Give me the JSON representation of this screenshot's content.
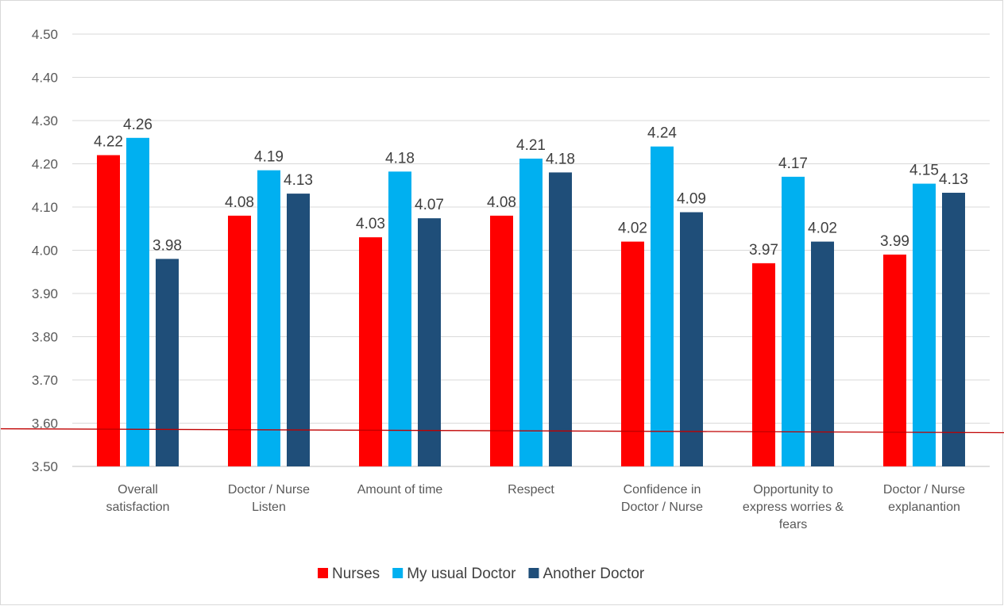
{
  "chart_data": {
    "type": "bar",
    "categories": [
      [
        "Overall",
        "satisfaction"
      ],
      [
        "Doctor / Nurse",
        "Listen"
      ],
      [
        "Amount of time"
      ],
      [
        "Respect"
      ],
      [
        "Confidence in",
        "Doctor / Nurse"
      ],
      [
        "Opportunity to",
        "express worries &",
        "fears"
      ],
      [
        "Doctor / Nurse",
        "explanantion"
      ]
    ],
    "series": [
      {
        "name": "Nurses",
        "color": "#ff0000",
        "values": [
          4.22,
          4.08,
          4.03,
          4.08,
          4.02,
          3.97,
          3.99
        ],
        "labels": [
          "4.22",
          "4.08",
          "4.03",
          "4.08",
          "4.02",
          "3.97",
          "3.99"
        ]
      },
      {
        "name": "My usual Doctor",
        "color": "#00b0f0",
        "values": [
          4.26,
          4.185,
          4.182,
          4.212,
          4.24,
          4.17,
          4.154
        ],
        "labels": [
          "4.26",
          "4.19",
          "4.18",
          "4.21",
          "4.24",
          "4.17",
          "4.15"
        ]
      },
      {
        "name": "Another Doctor",
        "color": "#1f4e79",
        "values": [
          3.98,
          4.131,
          4.074,
          4.18,
          4.088,
          4.02,
          4.133
        ],
        "labels": [
          "3.98",
          "4.13",
          "4.07",
          "4.18",
          "4.09",
          "4.02",
          "4.13"
        ]
      }
    ],
    "yticks": [
      "3.50",
      "3.60",
      "3.70",
      "3.80",
      "3.90",
      "4.00",
      "4.10",
      "4.20",
      "4.30",
      "4.40",
      "4.50"
    ],
    "ylim": [
      3.5,
      4.5
    ],
    "grid": true,
    "legend_position": "bottom",
    "reference_line": {
      "color": "#c00000",
      "start_value": 3.587,
      "end_value": 3.578
    },
    "title": "",
    "xlabel": "",
    "ylabel": ""
  }
}
